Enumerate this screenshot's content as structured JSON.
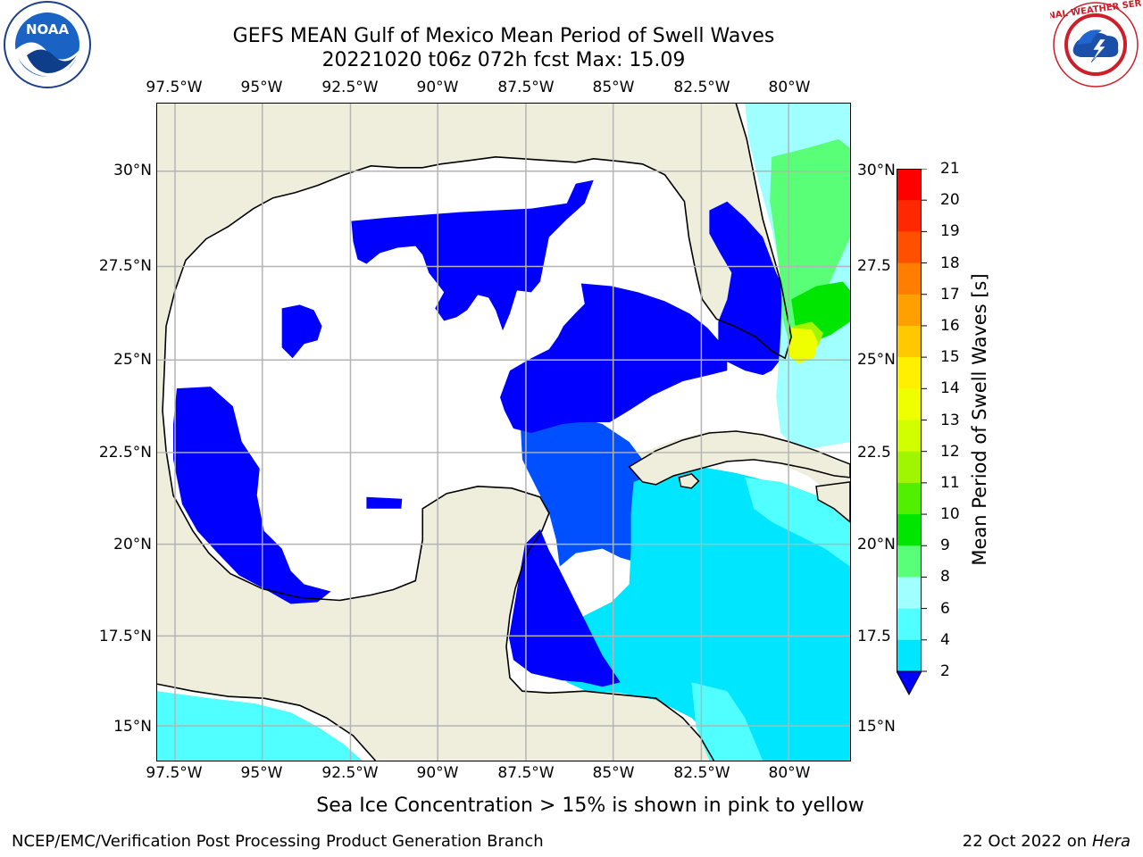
{
  "title": {
    "line1": "GEFS MEAN Gulf of Mexico Mean Period of Swell Waves",
    "line2": "20221020 t06z 072h fcst   Max: 15.09"
  },
  "map": {
    "lon_labels": [
      "97.5°W",
      "95°W",
      "92.5°W",
      "90°W",
      "87.5°W",
      "85°W",
      "82.5°W",
      "80°W"
    ],
    "lat_labels_left": [
      "30°N",
      "27.5°N",
      "25°N",
      "22.5°N",
      "20°N",
      "17.5°N",
      "15°N"
    ],
    "lat_labels_right": [
      "30°N",
      "27.5",
      "25°N",
      "22.5",
      "20°N",
      "17.5",
      "15°N"
    ],
    "land_color": "#efeedc",
    "ocean_color": "#ffffff"
  },
  "colorbar": {
    "title": "Mean Period of Swell Waves [s]",
    "levels": [
      "2",
      "4",
      "6",
      "8",
      "9",
      "10",
      "11",
      "12",
      "13",
      "14",
      "15",
      "16",
      "17",
      "18",
      "19",
      "20",
      "21"
    ],
    "colors": [
      "#0050ff",
      "#00e6ff",
      "#50ffff",
      "#a0ffff",
      "#5aff78",
      "#00e600",
      "#50f000",
      "#a0f500",
      "#d2ff00",
      "#f0ff00",
      "#fff000",
      "#ffc800",
      "#ffa000",
      "#ff7d00",
      "#ff5000",
      "#ff2800",
      "#ff0000"
    ],
    "extend_color": "#0000ff"
  },
  "note": "Sea Ice Concentration > 15% is shown in pink to yellow",
  "footer": {
    "left": "NCEP/EMC/Verification Post Processing Product Generation Branch",
    "right_date": "22 Oct 2022 on ",
    "right_host": "Hera"
  },
  "logos": {
    "noaa_text": "NOAA",
    "nws_text": "NATIONAL WEATHER SERVICE"
  }
}
